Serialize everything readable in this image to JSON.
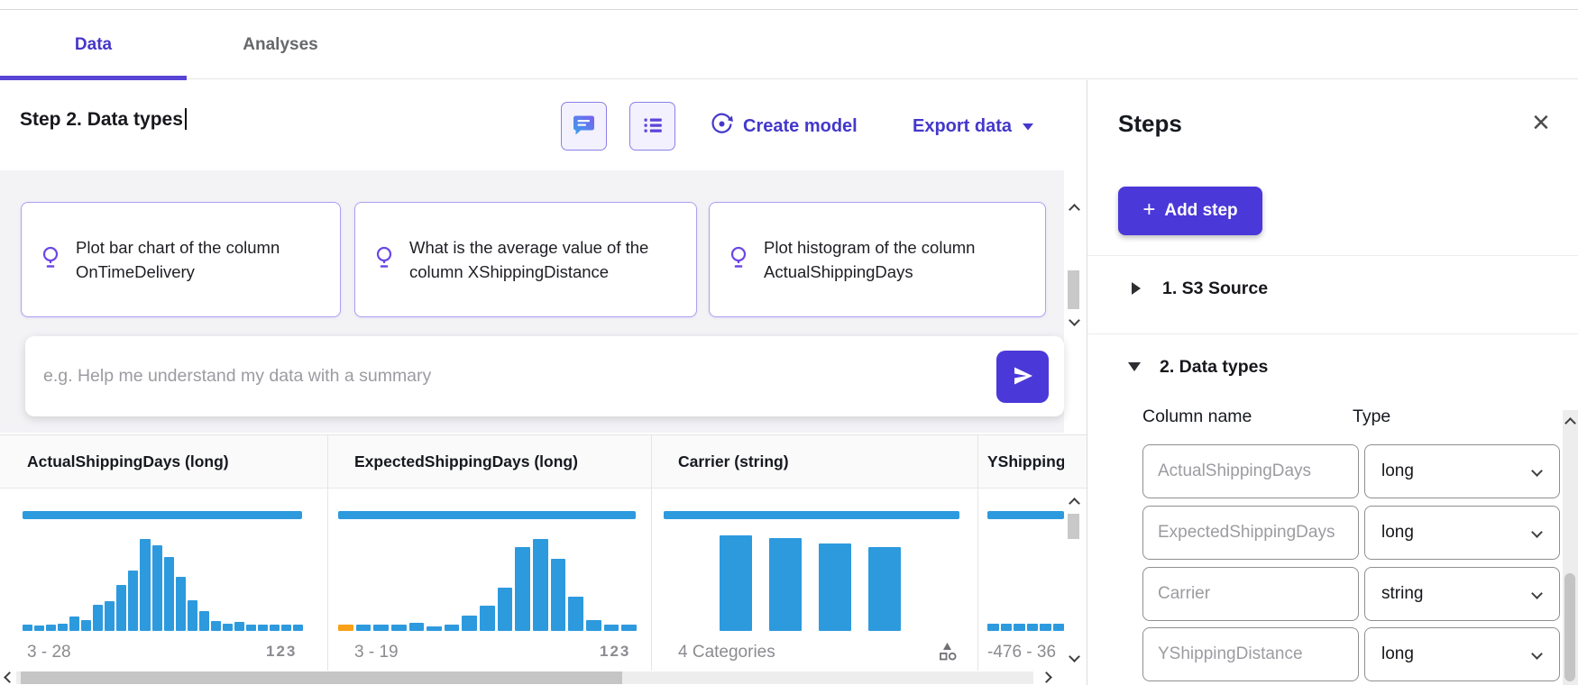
{
  "tabs": {
    "data": "Data",
    "analyses": "Analyses"
  },
  "header": {
    "title": "Step 2. Data types",
    "create_model_label": "Create model",
    "export_data_label": "Export data"
  },
  "suggestions": {
    "cards": [
      {
        "text": "Plot bar chart of the column OnTimeDelivery"
      },
      {
        "text": "What is the average value of the column XShippingDistance"
      },
      {
        "text": "Plot histogram of the column ActualShippingDays"
      }
    ],
    "input_placeholder": "e.g. Help me understand my data with a summary"
  },
  "grid": {
    "columns": [
      {
        "header": "ActualShippingDays (long)",
        "range": "3 - 28",
        "type_icon": "numeric-123",
        "hist": [
          7,
          6,
          7,
          8,
          16,
          12,
          29,
          33,
          51,
          67,
          102,
          95,
          82,
          60,
          34,
          22,
          11,
          8,
          10,
          7,
          7,
          7,
          7,
          7
        ]
      },
      {
        "header": "ExpectedShippingDays (long)",
        "range": "3 - 19",
        "type_icon": "numeric-123",
        "hist": [
          7,
          7,
          7,
          7,
          9,
          5,
          7,
          17,
          28,
          48,
          93,
          102,
          80,
          38,
          12,
          7,
          7
        ]
      },
      {
        "header": "Carrier (string)",
        "range": "4 Categories",
        "type_icon": "category-shapes",
        "hist": [
          106,
          103,
          97,
          93
        ]
      },
      {
        "header": "YShippingDistance (long)",
        "range": "-476 - 36",
        "type_icon": "",
        "hist": [
          8,
          8,
          8,
          8,
          8,
          8
        ]
      }
    ]
  },
  "steps_panel": {
    "title": "Steps",
    "add_step_label": "Add step",
    "steps": [
      {
        "label": "1. S3 Source"
      },
      {
        "label": "2. Data types"
      }
    ],
    "table": {
      "col_name_header": "Column name",
      "col_type_header": "Type",
      "rows": [
        {
          "name": "ActualShippingDays",
          "type": "long"
        },
        {
          "name": "ExpectedShippingDays",
          "type": "long"
        },
        {
          "name": "Carrier",
          "type": "string"
        },
        {
          "name": "YShippingDistance",
          "type": "long"
        }
      ]
    }
  },
  "colors": {
    "accent_purple": "#4b38d9",
    "link_purple": "#4438cb",
    "histogram_blue": "#2d9ade",
    "histogram_orange": "#f9a119"
  }
}
